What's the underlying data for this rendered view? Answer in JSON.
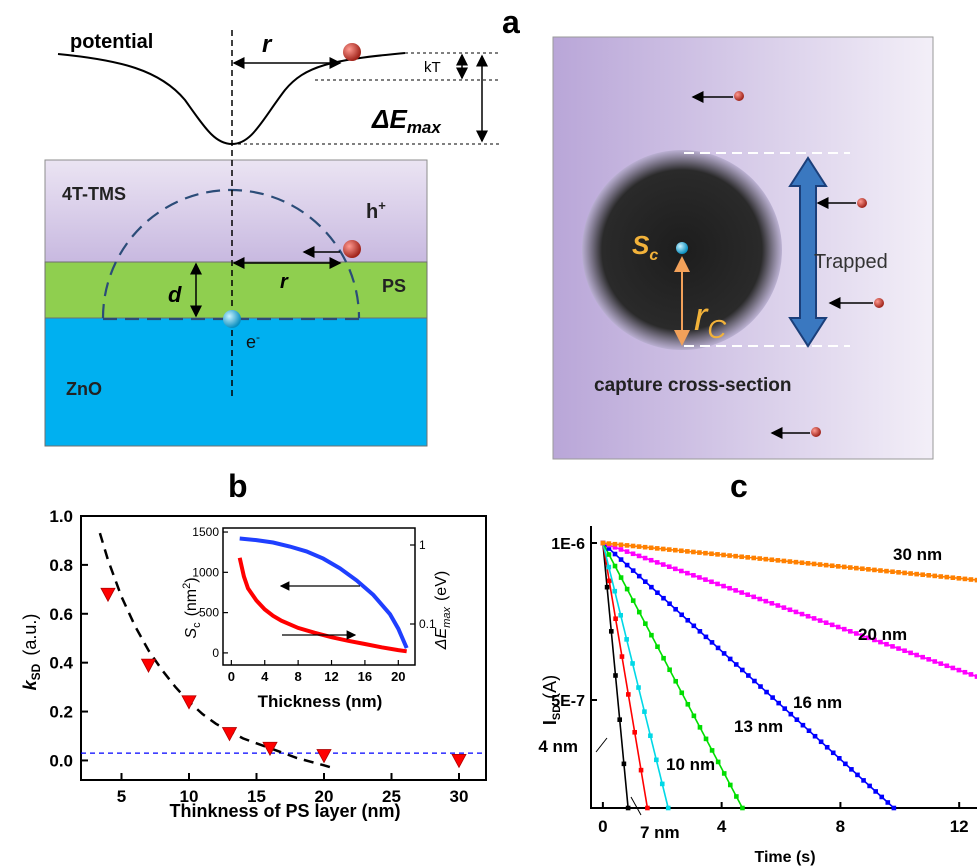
{
  "colors": {
    "tms": "#ddd3ea",
    "ps": "#8fcf4f",
    "zno": "#00b0f0",
    "panel_a_bg": "#b9a6d8",
    "arrow_blue": "#2f6db4",
    "hole_red": "#c0392b",
    "electron_cyan": "#1fb6e6",
    "orange": "#f2a15a",
    "series_4": "#000000",
    "series_7": "#ff0000",
    "series_10": "#00d8e6",
    "series_13": "#00dd00",
    "series_16": "#0000ff",
    "series_20": "#ff00ff",
    "series_30": "#ff8000",
    "inset_blue": "#1f3fff",
    "inset_red": "#ff0000"
  },
  "labels": {
    "panel_a": "a",
    "panel_b": "b",
    "panel_c": "c",
    "potential": "potential",
    "r": "r",
    "kT": "kT",
    "delta_e_max": "ΔE",
    "delta_e_max_sub": "max",
    "layer_tms": "4T-TMS",
    "layer_ps": "PS",
    "layer_zno": "ZnO",
    "hole": "h",
    "hole_sup": "+",
    "electron": "e",
    "electron_sup": "-",
    "d": "d",
    "trapped": "Trapped",
    "capture": "capture cross-section",
    "sc": "S",
    "sc_sub": "c",
    "rc": "r",
    "rc_sub": "C"
  },
  "chart_data": [
    {
      "type": "scatter",
      "panel": "b",
      "xlabel": "Thinkness of PS layer (nm)",
      "ylabel": "k",
      "ylabel_sub": "SD",
      "ylabel_unit": "(a.u.)",
      "xlim": [
        2,
        32
      ],
      "ylim": [
        -0.08,
        1.0
      ],
      "xticks": [
        5,
        10,
        15,
        20,
        25,
        30
      ],
      "yticks": [
        "0.0",
        "0.2",
        "0.4",
        "0.6",
        "0.8",
        "1.0"
      ],
      "points": [
        {
          "x": 4,
          "y": 0.68
        },
        {
          "x": 7,
          "y": 0.39
        },
        {
          "x": 10,
          "y": 0.24
        },
        {
          "x": 13,
          "y": 0.11
        },
        {
          "x": 16,
          "y": 0.05
        },
        {
          "x": 20,
          "y": 0.02
        },
        {
          "x": 30,
          "y": 0.0
        }
      ],
      "fit_curve": [
        [
          3.4,
          0.93
        ],
        [
          4,
          0.82
        ],
        [
          5,
          0.67
        ],
        [
          6,
          0.55
        ],
        [
          7,
          0.45
        ],
        [
          8,
          0.37
        ],
        [
          9,
          0.3
        ],
        [
          10,
          0.24
        ],
        [
          11,
          0.19
        ],
        [
          12,
          0.15
        ],
        [
          13,
          0.12
        ],
        [
          14,
          0.09
        ],
        [
          15,
          0.07
        ],
        [
          16,
          0.05
        ],
        [
          17,
          0.03
        ],
        [
          18,
          0.01
        ],
        [
          19,
          -0.005
        ],
        [
          20,
          -0.02
        ],
        [
          20.6,
          -0.03
        ]
      ],
      "baseline": 0.03
    },
    {
      "type": "line",
      "panel": "b-inset",
      "xlabel": "Thickness (nm)",
      "ylabel": "S",
      "ylabel_sub": "c",
      "ylabel_unit": "(nm",
      "ylabel_unit_sup": "2",
      "ylabel_unit_end": ")",
      "y2label": "ΔE",
      "y2label_sub": "max",
      "y2label_unit": "(eV)",
      "xlim": [
        -1,
        22
      ],
      "ylim": [
        -150,
        1550
      ],
      "xticks": [
        "0",
        "4",
        "8",
        "12",
        "16",
        "20"
      ],
      "yticks": [
        "0",
        "500",
        "1000",
        "1500"
      ],
      "y2ticks": [
        "1",
        "0.1"
      ],
      "series": [
        {
          "color_key": "inset_blue",
          "x": [
            1,
            3,
            5,
            7,
            9,
            11,
            13,
            15,
            17,
            19,
            20,
            21
          ],
          "y": [
            1420,
            1400,
            1370,
            1320,
            1260,
            1170,
            1050,
            900,
            720,
            480,
            300,
            60
          ]
        },
        {
          "color_key": "inset_red",
          "x": [
            1,
            1.5,
            2,
            3,
            4,
            5,
            6,
            8,
            10,
            12,
            14,
            16,
            18,
            20,
            21
          ],
          "y": [
            1180,
            950,
            800,
            650,
            540,
            460,
            400,
            310,
            250,
            195,
            150,
            110,
            70,
            35,
            20
          ]
        }
      ]
    },
    {
      "type": "line",
      "panel": "c",
      "xlabel": "Time (s)",
      "ylabel": "I",
      "ylabel_sub": "SD",
      "ylabel_unit": "(A)",
      "xlim": [
        -0.4,
        12.6
      ],
      "yticks": [
        "1E-6",
        "5E-7"
      ],
      "xticks": [
        "0",
        "4",
        "8",
        "12"
      ],
      "series": [
        {
          "name": "4 nm",
          "color_key": "series_4",
          "t_end": 0.85
        },
        {
          "name": "7 nm",
          "color_key": "series_7",
          "t_end": 1.5
        },
        {
          "name": "10 nm",
          "color_key": "series_10",
          "t_end": 2.2
        },
        {
          "name": "13 nm",
          "color_key": "series_13",
          "t_end": 4.7
        },
        {
          "name": "16 nm",
          "color_key": "series_16",
          "t_end": 9.8
        },
        {
          "name": "20 nm",
          "color_key": "series_20",
          "t_end": 25
        },
        {
          "name": "30 nm",
          "color_key": "series_30",
          "t_end": 90
        }
      ]
    }
  ]
}
